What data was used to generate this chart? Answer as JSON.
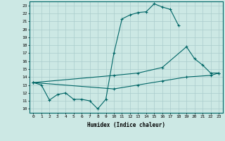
{
  "xlabel": "Humidex (Indice chaleur)",
  "bg_color": "#cce8e4",
  "grid_color": "#aacccc",
  "line_color": "#006666",
  "xlim": [
    -0.5,
    23.5
  ],
  "ylim": [
    9.5,
    23.5
  ],
  "xticks": [
    0,
    1,
    2,
    3,
    4,
    5,
    6,
    7,
    8,
    9,
    10,
    11,
    12,
    13,
    14,
    15,
    16,
    17,
    18,
    19,
    20,
    21,
    22,
    23
  ],
  "yticks": [
    10,
    11,
    12,
    13,
    14,
    15,
    16,
    17,
    18,
    19,
    20,
    21,
    22,
    23
  ],
  "curve1_x": [
    0,
    1,
    2,
    3,
    4,
    5,
    6,
    7,
    8,
    9,
    10,
    11,
    12,
    13,
    14,
    15,
    16,
    17,
    18
  ],
  "curve1_y": [
    13.3,
    13.0,
    11.1,
    11.8,
    12.0,
    11.2,
    11.2,
    11.0,
    10.0,
    11.2,
    17.0,
    21.3,
    21.8,
    22.1,
    22.2,
    23.2,
    22.8,
    22.5,
    20.5
  ],
  "curve2_x": [
    0,
    10,
    13,
    16,
    19,
    20,
    21,
    22,
    23
  ],
  "curve2_y": [
    13.3,
    14.2,
    14.5,
    15.2,
    17.8,
    16.3,
    15.5,
    14.5,
    14.5
  ],
  "curve3_x": [
    0,
    10,
    13,
    16,
    19,
    22,
    23
  ],
  "curve3_y": [
    13.3,
    12.5,
    13.0,
    13.5,
    14.0,
    14.2,
    14.5
  ]
}
